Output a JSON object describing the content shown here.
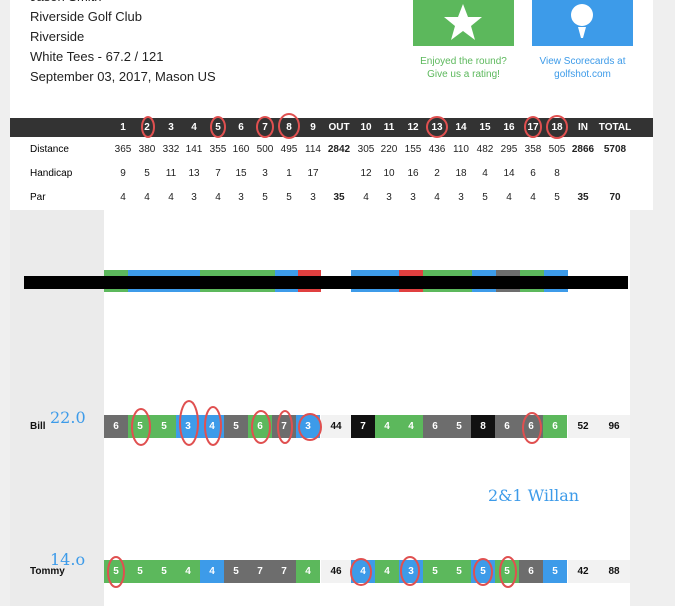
{
  "header": {
    "lines": [
      "Jason Smith",
      "Riverside Golf Club",
      "Riverside",
      "White Tees - 67.2 / 121",
      "September 03, 2017, Mason US"
    ]
  },
  "rating": {
    "lines": [
      "Enjoyed the round?",
      "Give us a rating!"
    ]
  },
  "scorecards_link": {
    "lines": [
      "View Scorecards at",
      "golfshot.com"
    ]
  },
  "scorecard": {
    "columns": [
      "1",
      "2",
      "3",
      "4",
      "5",
      "6",
      "7",
      "8",
      "9",
      "OUT",
      "10",
      "11",
      "12",
      "13",
      "14",
      "15",
      "16",
      "17",
      "18",
      "IN",
      "TOTAL"
    ],
    "rows": [
      {
        "label": "Distance",
        "values": [
          365,
          380,
          332,
          141,
          355,
          160,
          500,
          495,
          114,
          2842,
          305,
          220,
          155,
          436,
          110,
          482,
          295,
          358,
          505,
          2866,
          5708
        ]
      },
      {
        "label": "Handicap",
        "values": [
          9,
          5,
          11,
          13,
          7,
          15,
          3,
          1,
          17,
          null,
          12,
          10,
          16,
          2,
          18,
          4,
          14,
          6,
          8,
          null,
          null
        ]
      },
      {
        "label": "Par",
        "values": [
          4,
          4,
          4,
          3,
          4,
          3,
          5,
          5,
          3,
          35,
          4,
          3,
          3,
          4,
          3,
          5,
          4,
          4,
          5,
          35,
          70
        ]
      }
    ]
  },
  "players": [
    {
      "name": "Bill",
      "note": "22.0",
      "scores": [
        6,
        5,
        5,
        3,
        4,
        5,
        6,
        7,
        3,
        44,
        7,
        4,
        4,
        6,
        5,
        8,
        6,
        6,
        6,
        52,
        96
      ],
      "colors": [
        "#6d6d6d",
        "#5cb85c",
        "#5cb85c",
        "#3d9be9",
        "#3d9be9",
        "#6d6d6d",
        "#5cb85c",
        "#6d6d6d",
        "#3d9be9",
        "#f2f2f2",
        "#111111",
        "#5cb85c",
        "#5cb85c",
        "#6d6d6d",
        "#6d6d6d",
        "#111111",
        "#6d6d6d",
        "#6d6d6d",
        "#5cb85c",
        "#f2f2f2",
        "#f2f2f2"
      ]
    },
    {
      "name": "Tommy",
      "note": "14.o",
      "scores": [
        5,
        5,
        5,
        4,
        4,
        5,
        7,
        7,
        4,
        46,
        4,
        4,
        3,
        5,
        5,
        5,
        5,
        6,
        5,
        42,
        88
      ],
      "colors": [
        "#5cb85c",
        "#5cb85c",
        "#5cb85c",
        "#5cb85c",
        "#3d9be9",
        "#6d6d6d",
        "#6d6d6d",
        "#6d6d6d",
        "#5cb85c",
        "#f2f2f2",
        "#3d9be9",
        "#5cb85c",
        "#3d9be9",
        "#5cb85c",
        "#5cb85c",
        "#3d9be9",
        "#5cb85c",
        "#6d6d6d",
        "#3d9be9",
        "#f2f2f2",
        "#f2f2f2"
      ]
    }
  ],
  "match_note": "2&1 Willan"
}
